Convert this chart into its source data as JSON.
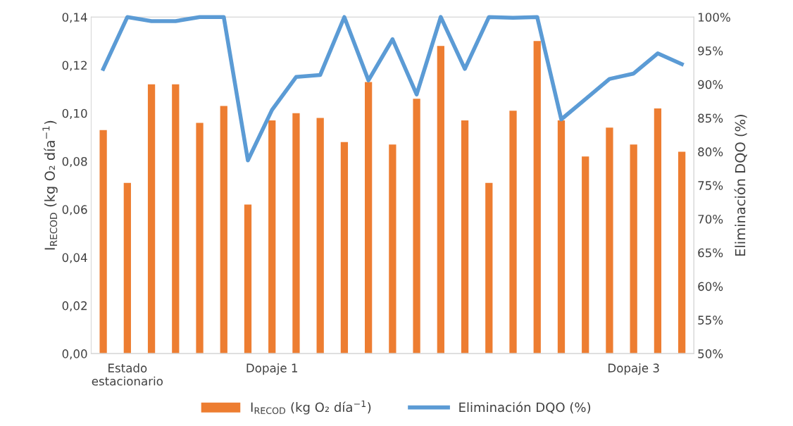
{
  "chart_data": {
    "type": "bar",
    "categories": [
      null,
      "Estado estacionario",
      null,
      null,
      null,
      null,
      null,
      "Dopaje 1",
      null,
      null,
      null,
      null,
      null,
      null,
      null,
      null,
      null,
      null,
      null,
      null,
      null,
      null,
      "Dopaje 3",
      null,
      null
    ],
    "series": [
      {
        "name": "I$_{RECOD}$ (kg O₂ día$^{−1}$)",
        "color": "#ed7d31",
        "values": [
          0.093,
          0.071,
          0.112,
          0.112,
          0.096,
          0.103,
          0.062,
          0.097,
          0.1,
          0.098,
          0.088,
          0.113,
          0.087,
          0.106,
          0.128,
          0.097,
          0.071,
          0.101,
          0.13,
          0.097,
          0.082,
          0.094,
          0.087,
          0.102,
          0.084
        ]
      },
      {
        "name": "Eliminación DQO (%)",
        "type": "line",
        "axis": "y2",
        "color": "#5b9bd5",
        "values": [
          92.3,
          100,
          99.4,
          99.4,
          100,
          100,
          78.7,
          86.2,
          91.1,
          91.4,
          100,
          90.6,
          96.7,
          88.5,
          100,
          92.3,
          100,
          99.9,
          100,
          84.8,
          87.8,
          90.8,
          91.6,
          94.6,
          93.0
        ]
      }
    ],
    "ylabel": "I$_{RECOD}$ (kg O₂ día$^{−1}$)",
    "y2label": "Eliminación DQO (%)",
    "ylim": [
      0,
      0.14
    ],
    "yticks": [
      {
        "value": 0,
        "label": "0,00"
      },
      {
        "value": 0.02,
        "label": "0,02"
      },
      {
        "value": 0.04,
        "label": "0,04"
      },
      {
        "value": 0.06,
        "label": "0,06"
      },
      {
        "value": 0.08,
        "label": "0,08"
      },
      {
        "value": 0.1,
        "label": "0,10"
      },
      {
        "value": 0.12,
        "label": "0,12"
      },
      {
        "value": 0.14,
        "label": "0,14"
      }
    ],
    "y2lim": [
      50,
      100
    ],
    "y2ticks": [
      {
        "value": 50,
        "label": "50%"
      },
      {
        "value": 55,
        "label": "55%"
      },
      {
        "value": 60,
        "label": "60%"
      },
      {
        "value": 65,
        "label": "65%"
      },
      {
        "value": 70,
        "label": "70%"
      },
      {
        "value": 75,
        "label": "75%"
      },
      {
        "value": 80,
        "label": "80%"
      },
      {
        "value": 85,
        "label": "85%"
      },
      {
        "value": 90,
        "label": "90%"
      },
      {
        "value": 95,
        "label": "95%"
      },
      {
        "value": 100,
        "label": "100%"
      }
    ],
    "legend": "bottom",
    "grid": false
  }
}
